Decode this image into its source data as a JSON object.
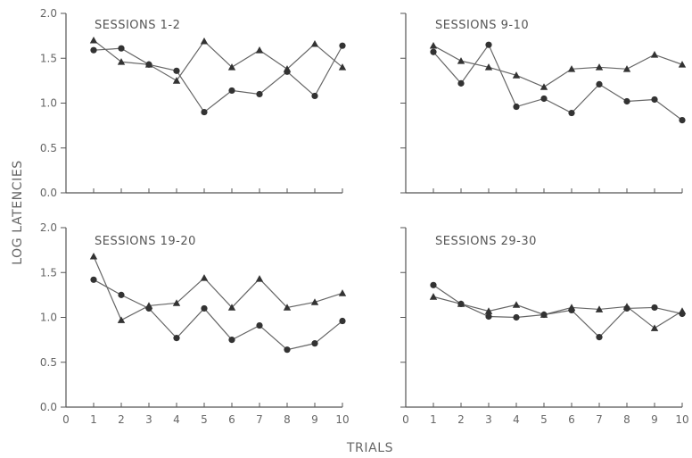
{
  "figure": {
    "ylabel": "LOG LATENCIES",
    "xlabel": "TRIALS"
  },
  "chart_data": [
    {
      "type": "line",
      "title": "SESSIONS 1-2",
      "xlim": [
        0,
        10
      ],
      "ylim": [
        0.0,
        2.0
      ],
      "x": [
        1,
        2,
        3,
        4,
        5,
        6,
        7,
        8,
        9,
        10
      ],
      "series": [
        {
          "marker": "triangle",
          "values": [
            1.7,
            1.46,
            1.43,
            1.25,
            1.69,
            1.4,
            1.59,
            1.38,
            1.66,
            1.4
          ]
        },
        {
          "marker": "circle",
          "values": [
            1.59,
            1.61,
            1.43,
            1.36,
            0.9,
            1.14,
            1.1,
            1.35,
            1.08,
            1.64
          ]
        }
      ]
    },
    {
      "type": "line",
      "title": "SESSIONS 9-10",
      "xlim": [
        0,
        10
      ],
      "ylim": [
        0.0,
        2.0
      ],
      "x": [
        1,
        2,
        3,
        4,
        5,
        6,
        7,
        8,
        9,
        10
      ],
      "series": [
        {
          "marker": "triangle",
          "values": [
            1.64,
            1.47,
            1.4,
            1.31,
            1.18,
            1.38,
            1.4,
            1.38,
            1.54,
            1.43
          ]
        },
        {
          "marker": "circle",
          "values": [
            1.57,
            1.22,
            1.65,
            0.96,
            1.05,
            0.89,
            1.21,
            1.02,
            1.04,
            0.81
          ]
        }
      ]
    },
    {
      "type": "line",
      "title": "SESSIONS 19-20",
      "xlim": [
        0,
        10
      ],
      "ylim": [
        0.0,
        2.0
      ],
      "x": [
        1,
        2,
        3,
        4,
        5,
        6,
        7,
        8,
        9,
        10
      ],
      "series": [
        {
          "marker": "triangle",
          "values": [
            1.68,
            0.97,
            1.13,
            1.16,
            1.44,
            1.11,
            1.43,
            1.11,
            1.17,
            1.27
          ]
        },
        {
          "marker": "circle",
          "values": [
            1.42,
            1.25,
            1.1,
            0.77,
            1.1,
            0.75,
            0.91,
            0.64,
            0.71,
            0.96
          ]
        }
      ]
    },
    {
      "type": "line",
      "title": "SESSIONS 29-30",
      "xlim": [
        0,
        10
      ],
      "ylim": [
        0.0,
        2.0
      ],
      "x": [
        1,
        2,
        3,
        4,
        5,
        6,
        7,
        8,
        9,
        10
      ],
      "series": [
        {
          "marker": "triangle",
          "values": [
            1.23,
            1.15,
            1.07,
            1.14,
            1.03,
            1.11,
            1.09,
            1.12,
            0.88,
            1.07
          ]
        },
        {
          "marker": "circle",
          "values": [
            1.36,
            1.15,
            1.01,
            1.0,
            1.03,
            1.08,
            0.78,
            1.1,
            1.11,
            1.04
          ]
        }
      ]
    }
  ]
}
